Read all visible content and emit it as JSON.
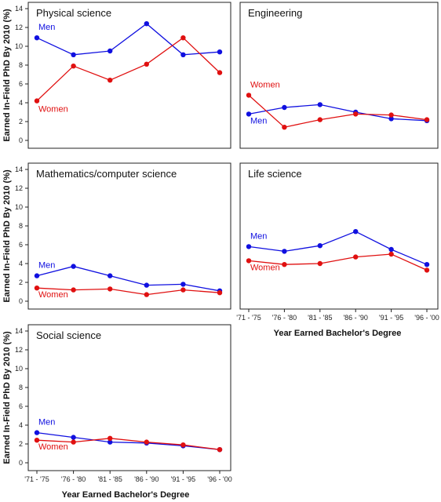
{
  "ylabel": "Earned In-Field PhD By 2010 (%)",
  "xlabel": "Year Earned Bachelor's Degree",
  "colors": {
    "men": "#1010e0",
    "women": "#e01010"
  },
  "chart_data": [
    {
      "type": "line",
      "title": "Physical science",
      "categories": [
        "'71 - '75",
        "'76 - '80",
        "'81 - '85",
        "'86 - '90",
        "'91 - '95",
        "'96 - '00"
      ],
      "ylim": [
        0,
        14
      ],
      "yticks": [
        0,
        2,
        4,
        6,
        8,
        10,
        12,
        14
      ],
      "series": [
        {
          "name": "Men",
          "values": [
            10.9,
            9.1,
            9.5,
            12.4,
            9.1,
            9.4
          ]
        },
        {
          "name": "Women",
          "values": [
            4.2,
            7.9,
            6.4,
            8.1,
            10.9,
            7.2
          ]
        }
      ]
    },
    {
      "type": "line",
      "title": "Engineering",
      "categories": [
        "'71 - '75",
        "'76 - '80",
        "'81 - '85",
        "'86 - '90",
        "'91 - '95",
        "'96 - '00"
      ],
      "ylim": [
        0,
        14
      ],
      "yticks": [
        0,
        2,
        4,
        6,
        8,
        10,
        12,
        14
      ],
      "series": [
        {
          "name": "Men",
          "values": [
            2.8,
            3.5,
            3.8,
            3.0,
            2.3,
            2.1
          ]
        },
        {
          "name": "Women",
          "values": [
            4.8,
            1.4,
            2.2,
            2.8,
            2.7,
            2.2
          ]
        }
      ]
    },
    {
      "type": "line",
      "title": "Mathematics/computer science",
      "categories": [
        "'71 - '75",
        "'76 - '80",
        "'81 - '85",
        "'86 - '90",
        "'91 - '95",
        "'96 - '00"
      ],
      "ylim": [
        0,
        14
      ],
      "yticks": [
        0,
        2,
        4,
        6,
        8,
        10,
        12,
        14
      ],
      "series": [
        {
          "name": "Men",
          "values": [
            2.7,
            3.7,
            2.7,
            1.7,
            1.8,
            1.1
          ]
        },
        {
          "name": "Women",
          "values": [
            1.4,
            1.2,
            1.3,
            0.7,
            1.2,
            0.9
          ]
        }
      ]
    },
    {
      "type": "line",
      "title": "Life science",
      "categories": [
        "'71 - '75",
        "'76 - '80",
        "'81 - '85",
        "'86 - '90",
        "'91 - '95",
        "'96 - '00"
      ],
      "ylim": [
        0,
        14
      ],
      "yticks": [
        0,
        2,
        4,
        6,
        8,
        10,
        12,
        14
      ],
      "series": [
        {
          "name": "Men",
          "values": [
            5.8,
            5.3,
            5.9,
            7.4,
            5.5,
            3.9
          ]
        },
        {
          "name": "Women",
          "values": [
            4.3,
            3.9,
            4.0,
            4.7,
            5.0,
            3.3
          ]
        }
      ]
    },
    {
      "type": "line",
      "title": "Social science",
      "categories": [
        "'71 - '75",
        "'76 - '80",
        "'81 - '85",
        "'86 - '90",
        "'91 - '95",
        "'96 - '00"
      ],
      "ylim": [
        0,
        14
      ],
      "yticks": [
        0,
        2,
        4,
        6,
        8,
        10,
        12,
        14
      ],
      "series": [
        {
          "name": "Men",
          "values": [
            3.2,
            2.7,
            2.2,
            2.1,
            1.8,
            1.4
          ]
        },
        {
          "name": "Women",
          "values": [
            2.4,
            2.2,
            2.6,
            2.2,
            1.9,
            1.4
          ]
        }
      ]
    }
  ]
}
